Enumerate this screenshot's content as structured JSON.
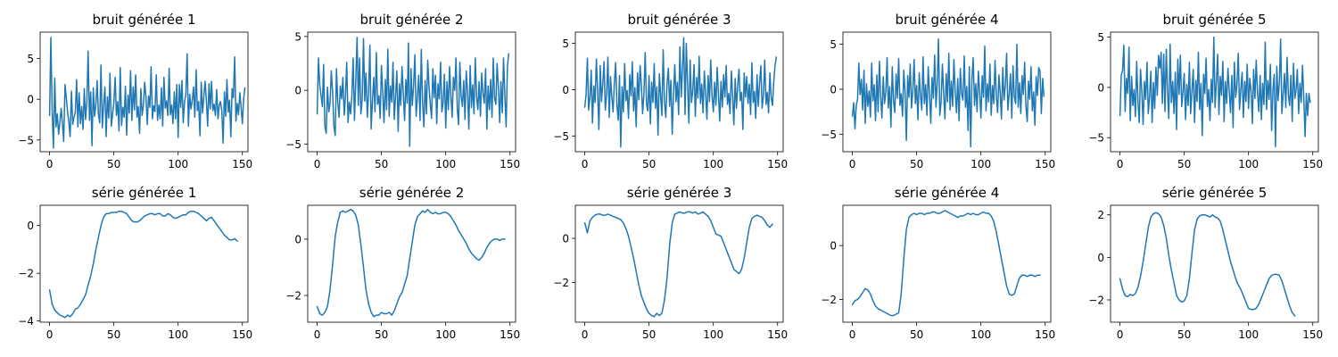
{
  "figure": {
    "background": "#ffffff",
    "line_color": "#1f77b4"
  },
  "chart_data": [
    {
      "type": "line",
      "title": "bruit générée 1",
      "xlim": [
        -7.35,
        154.35
      ],
      "ylim": [
        -6.45,
        8.25
      ],
      "xticks": [
        0,
        50,
        100,
        150
      ],
      "yticks": [
        -5,
        0,
        5
      ],
      "x_start": 0,
      "x_step": 1,
      "values": [
        -2.0,
        7.6,
        -1.5,
        -6.0,
        2.6,
        -3.4,
        -1.8,
        -4.3,
        -2.9,
        -1.1,
        -3.0,
        -5.2,
        1.8,
        0.2,
        -1.6,
        -2.8,
        -4.6,
        1.0,
        -3.1,
        -2.2,
        -1.6,
        2.4,
        -3.4,
        0.8,
        -3.0,
        -0.9,
        -3.7,
        1.3,
        -2.5,
        -0.3,
        5.9,
        -2.6,
        0.9,
        -5.7,
        1.4,
        -2.1,
        -0.6,
        2.3,
        -1.8,
        -2.9,
        4.2,
        -3.5,
        -0.8,
        1.5,
        -4.6,
        0.3,
        -2.3,
        3.2,
        -3.3,
        -1.8,
        -0.5,
        2.7,
        -2.0,
        -0.3,
        -3.9,
        3.9,
        -3.2,
        -1.0,
        -2.2,
        1.6,
        -4.4,
        0.5,
        -1.7,
        3.5,
        -2.6,
        1.5,
        -1.3,
        3.0,
        -2.2,
        -0.9,
        -4.2,
        1.3,
        -2.0,
        -0.7,
        2.1,
        0.2,
        -3.1,
        0.4,
        -1.0,
        4.0,
        -2.4,
        -0.8,
        -1.5,
        3.0,
        -2.6,
        -0.7,
        -2.4,
        1.4,
        -3.3,
        2.7,
        -1.1,
        -0.2,
        -2.0,
        3.8,
        -1.9,
        -0.7,
        -3.0,
        0.9,
        -2.4,
        1.8,
        -4.7,
        1.8,
        -1.0,
        2.3,
        -2.9,
        -0.3,
        0.5,
        5.6,
        -3.3,
        0.6,
        -1.2,
        -0.2,
        1.5,
        -2.2,
        3.6,
        -1.4,
        -0.3,
        -4.5,
        2.1,
        -1.7,
        0.3,
        2.2,
        -0.2,
        -3.3,
        1.9,
        -1.2,
        2.2,
        -1.4,
        -0.6,
        -2.0,
        1.2,
        -2.4,
        -0.7,
        -0.3,
        -1.5,
        -5.4,
        0.9,
        -2.1,
        2.4,
        -1.6,
        -0.1,
        -4.6,
        1.3,
        0.2,
        5.2,
        -2.7,
        -0.5,
        -1.9,
        0.8,
        -1.0,
        -3.0,
        0.1,
        1.4
      ]
    },
    {
      "type": "line",
      "title": "bruit générée 2",
      "xlim": [
        -7.35,
        154.35
      ],
      "ylim": [
        -5.7,
        5.4
      ],
      "xticks": [
        0,
        50,
        100,
        150
      ],
      "yticks": [
        -5,
        0,
        5
      ],
      "x_start": 0,
      "x_step": 1,
      "values": [
        -2.2,
        3.0,
        0.5,
        -0.5,
        -1.5,
        2.4,
        -3.3,
        -4.0,
        0.3,
        -2.0,
        -1.2,
        1.8,
        -0.2,
        -3.3,
        -4.2,
        2.0,
        -1.0,
        -2.5,
        0.4,
        -0.8,
        1.2,
        -2.3,
        -0.5,
        2.6,
        -3.0,
        -1.1,
        -2.2,
        -0.4,
        3.0,
        -2.8,
        0.7,
        4.9,
        -1.4,
        3.0,
        -2.2,
        -0.9,
        4.8,
        -1.0,
        1.6,
        -2.5,
        -0.3,
        4.2,
        -3.6,
        -0.9,
        1.2,
        -2.0,
        3.5,
        -1.3,
        -0.5,
        -2.6,
        2.3,
        -0.2,
        -3.0,
        1.0,
        -1.8,
        3.8,
        -2.4,
        0.4,
        -1.1,
        2.6,
        -2.7,
        -0.5,
        1.8,
        -3.8,
        0.6,
        -1.4,
        2.2,
        -0.3,
        -2.8,
        1.0,
        -1.2,
        4.4,
        -5.2,
        2.0,
        -1.4,
        0.5,
        3.3,
        -2.4,
        -0.6,
        1.4,
        -2.8,
        3.8,
        -1.0,
        -3.4,
        0.9,
        -2.2,
        2.8,
        0.3,
        -1.3,
        -2.6,
        2.0,
        -0.7,
        1.4,
        -3.1,
        0.6,
        -0.8,
        2.6,
        -2.0,
        -1.1,
        1.5,
        -3.5,
        0.8,
        -1.8,
        2.2,
        -0.4,
        -2.5,
        1.2,
        0.0,
        3.0,
        -1.8,
        -3.2,
        2.6,
        -0.6,
        -1.5,
        0.9,
        -2.7,
        1.8,
        -0.2,
        -3.6,
        2.3,
        -1.6,
        0.5,
        -2.2,
        3.0,
        -0.6,
        -1.8,
        0.8,
        -2.4,
        1.6,
        -0.3,
        -1.2,
        2.0,
        -3.6,
        0.4,
        -1.8,
        1.0,
        -2.5,
        3.0,
        -0.7,
        -1.3,
        2.5,
        0.2,
        -3.0,
        0.8,
        -2.1,
        3.0,
        -0.5,
        -3.4,
        2.2,
        3.4
      ]
    },
    {
      "type": "line",
      "title": "bruit générée 3",
      "xlim": [
        -7.35,
        154.35
      ],
      "ylim": [
        -6.7,
        6.2
      ],
      "xticks": [
        0,
        50,
        100,
        150
      ],
      "yticks": [
        -5,
        0,
        5
      ],
      "x_start": 0,
      "x_step": 1,
      "values": [
        -1.9,
        -0.6,
        3.4,
        -2.2,
        -0.8,
        2.1,
        -3.6,
        0.4,
        -1.4,
        3.3,
        -0.2,
        -4.3,
        2.6,
        -1.3,
        0.7,
        3.0,
        -2.2,
        -0.5,
        3.5,
        -3.0,
        1.4,
        -0.8,
        -2.4,
        0.6,
        2.9,
        -1.6,
        -3.3,
        1.5,
        -6.2,
        0.3,
        -2.4,
        2.8,
        -1.2,
        -0.1,
        -3.1,
        1.6,
        -0.7,
        3.0,
        -2.3,
        0.2,
        -4.0,
        1.8,
        -1.1,
        2.6,
        0.5,
        -2.6,
        -0.4,
        4.0,
        -1.6,
        -2.3,
        1.5,
        -3.7,
        0.8,
        -1.4,
        2.8,
        -2.0,
        0.3,
        -4.9,
        1.7,
        -0.6,
        -2.8,
        4.3,
        -1.3,
        -3.0,
        0.6,
        2.3,
        -1.8,
        1.0,
        -4.8,
        -0.6,
        2.7,
        -1.3,
        0.8,
        -2.7,
        4.6,
        -0.8,
        2.3,
        5.6,
        -2.7,
        5.0,
        0.4,
        -3.6,
        3.2,
        -1.4,
        -0.2,
        2.7,
        -2.9,
        1.3,
        -0.9,
        3.6,
        -1.5,
        0.6,
        -2.5,
        2.0,
        -0.3,
        -3.2,
        1.5,
        -1.3,
        3.2,
        -0.6,
        -2.4,
        0.8,
        -1.7,
        2.4,
        -0.4,
        -3.4,
        0.9,
        -1.9,
        1.6,
        -0.8,
        2.6,
        -1.6,
        -0.4,
        -2.6,
        2.0,
        -0.6,
        -3.8,
        1.2,
        -2.0,
        0.5,
        2.2,
        -1.2,
        -0.3,
        -4.3,
        1.8,
        -0.8,
        1.4,
        -1.5,
        0.6,
        -2.7,
        2.9,
        -1.4,
        -0.2,
        -3.1,
        1.6,
        -1.8,
        0.8,
        2.6,
        -2.0,
        -0.6,
        3.2,
        -1.6,
        -0.3,
        -2.5,
        1.8,
        -0.8,
        -1.7,
        0.8,
        2.6,
        3.5
      ]
    },
    {
      "type": "line",
      "title": "bruit générée 4",
      "xlim": [
        -7.35,
        154.35
      ],
      "ylim": [
        -6.95,
        6.35
      ],
      "xticks": [
        0,
        50,
        100,
        150
      ],
      "yticks": [
        -5,
        0,
        5
      ],
      "x_start": 0,
      "x_step": 1,
      "values": [
        -3.0,
        -1.5,
        -4.4,
        -1.8,
        -1.1,
        2.9,
        -0.6,
        1.1,
        -2.3,
        2.1,
        -3.8,
        0.6,
        -1.9,
        -0.2,
        -3.1,
        2.9,
        -1.3,
        0.5,
        -3.5,
        1.6,
        -2.5,
        3.1,
        -0.8,
        -3.2,
        1.4,
        -1.6,
        -0.3,
        3.5,
        -2.1,
        0.3,
        -4.2,
        2.5,
        -1.2,
        -2.6,
        1.7,
        -1.0,
        3.4,
        -1.8,
        -0.5,
        -3.0,
        2.1,
        -0.4,
        -5.7,
        1.5,
        -0.9,
        2.8,
        -2.1,
        -0.2,
        3.3,
        -1.6,
        0.4,
        -3.4,
        1.8,
        -0.8,
        -2.3,
        3.6,
        -1.6,
        0.5,
        -2.9,
        2.5,
        -0.4,
        -3.8,
        1.3,
        -1.0,
        3.8,
        -2.0,
        0.7,
        5.6,
        -2.9,
        -1.5,
        2.8,
        -0.5,
        -3.3,
        1.7,
        -1.4,
        4.0,
        -2.3,
        0.9,
        -1.9,
        3.3,
        -0.4,
        -2.6,
        1.2,
        -3.5,
        2.3,
        -0.6,
        -1.2,
        3.7,
        -2.0,
        0.3,
        -4.6,
        2.5,
        -6.4,
        1.0,
        3.5,
        -1.8,
        0.6,
        -2.5,
        2.0,
        -0.2,
        -3.2,
        1.5,
        -0.9,
        4.8,
        -2.4,
        0.6,
        -1.4,
        2.8,
        -2.9,
        0.4,
        -1.6,
        3.2,
        -0.8,
        -2.6,
        1.6,
        -0.4,
        -3.3,
        2.4,
        -1.2,
        0.5,
        4.0,
        -2.3,
        -0.5,
        1.7,
        -3.2,
        2.6,
        -0.8,
        -1.6,
        5.0,
        -2.0,
        0.7,
        -2.7,
        1.5,
        -0.6,
        3.0,
        -1.8,
        -3.6,
        0.9,
        -1.1,
        2.5,
        -2.4,
        -0.3,
        -4.0,
        1.4,
        -0.7,
        2.4,
        2.0,
        -2.7,
        1.2,
        -0.8
      ]
    },
    {
      "type": "line",
      "title": "bruit générée 5",
      "xlim": [
        -7.35,
        154.35
      ],
      "ylim": [
        -6.4,
        5.5
      ],
      "xticks": [
        0,
        50,
        100,
        150
      ],
      "yticks": [
        -5,
        0,
        5
      ],
      "x_start": 0,
      "x_step": 1,
      "values": [
        -2.8,
        1.2,
        1.7,
        4.2,
        -2.4,
        0.9,
        -0.6,
        4.0,
        -3.3,
        1.1,
        -1.8,
        -0.2,
        -2.9,
        2.6,
        -1.5,
        -3.5,
        1.8,
        -0.4,
        -3.7,
        0.6,
        -1.2,
        2.5,
        -2.6,
        -1.0,
        1.6,
        -3.5,
        0.5,
        -2.1,
        2.0,
        -0.8,
        3.2,
        1.9,
        3.5,
        -1.6,
        3.3,
        -2.4,
        3.8,
        -0.5,
        -3.1,
        4.3,
        -1.5,
        0.6,
        -2.6,
        1.5,
        -4.2,
        2.8,
        -0.7,
        3.2,
        -1.9,
        -0.4,
        1.4,
        -3.2,
        0.3,
        -1.8,
        2.5,
        -2.6,
        -0.3,
        1.8,
        -3.5,
        0.7,
        -1.4,
        3.5,
        -2.2,
        0.4,
        -4.8,
        1.3,
        -0.6,
        2.9,
        -1.9,
        -0.2,
        -3.3,
        0.8,
        -1.5,
        5.0,
        -2.0,
        0.6,
        3.3,
        -2.7,
        1.1,
        -0.8,
        2.6,
        -3.4,
        0.6,
        -1.6,
        1.9,
        -0.4,
        -2.5,
        1.2,
        -4.0,
        2.5,
        -1.0,
        0.3,
        3.4,
        -2.2,
        -0.3,
        1.5,
        -3.0,
        0.6,
        -1.4,
        2.3,
        -2.1,
        0.9,
        -0.4,
        -3.6,
        1.8,
        -1.1,
        2.7,
        -0.6,
        -2.4,
        1.2,
        -3.2,
        0.4,
        -1.7,
        4.5,
        -2.2,
        0.7,
        -1.2,
        2.3,
        -4.3,
        -0.2,
        1.3,
        -5.9,
        2.1,
        -1.3,
        0.5,
        4.8,
        -2.6,
        -0.6,
        1.4,
        -2.0,
        3.0,
        -0.8,
        -1.8,
        1.2,
        -3.4,
        2.4,
        -1.1,
        -0.3,
        1.8,
        -2.6,
        0.4,
        -1.5,
        2.2,
        -0.9,
        -4.9,
        -0.6,
        -2.8,
        -0.6,
        -1.5
      ]
    },
    {
      "type": "line",
      "title": "série générée 1",
      "xlim": [
        -7.35,
        154.35
      ],
      "ylim": [
        -4.05,
        0.85
      ],
      "xticks": [
        0,
        50,
        100,
        150
      ],
      "yticks": [
        -4,
        -2,
        0
      ],
      "x_start": 0,
      "x_step": 2,
      "values": [
        -2.7,
        -3.3,
        -3.55,
        -3.65,
        -3.75,
        -3.8,
        -3.85,
        -3.75,
        -3.82,
        -3.7,
        -3.5,
        -3.45,
        -3.3,
        -3.1,
        -2.9,
        -2.5,
        -2.1,
        -1.6,
        -1.0,
        -0.5,
        0.0,
        0.35,
        0.5,
        0.5,
        0.55,
        0.55,
        0.55,
        0.6,
        0.6,
        0.55,
        0.5,
        0.35,
        0.2,
        0.15,
        0.15,
        0.2,
        0.3,
        0.4,
        0.45,
        0.5,
        0.5,
        0.45,
        0.5,
        0.5,
        0.4,
        0.4,
        0.5,
        0.45,
        0.35,
        0.3,
        0.35,
        0.4,
        0.45,
        0.45,
        0.55,
        0.6,
        0.6,
        0.55,
        0.5,
        0.4,
        0.3,
        0.2,
        0.3,
        0.35,
        0.2,
        0.05,
        -0.1,
        -0.25,
        -0.4,
        -0.5,
        -0.6,
        -0.6,
        -0.55,
        -0.65
      ]
    },
    {
      "type": "line",
      "title": "série générée 2",
      "xlim": [
        -7.35,
        154.35
      ],
      "ylim": [
        -2.95,
        1.2
      ],
      "xticks": [
        0,
        50,
        100,
        150
      ],
      "yticks": [
        -2,
        0
      ],
      "x_start": 0,
      "x_step": 2,
      "values": [
        -2.4,
        -2.65,
        -2.7,
        -2.6,
        -2.4,
        -1.8,
        -0.9,
        0.1,
        0.6,
        0.95,
        1.0,
        0.95,
        1.0,
        1.05,
        1.0,
        0.85,
        0.5,
        -0.2,
        -1.0,
        -1.8,
        -2.3,
        -2.6,
        -2.75,
        -2.7,
        -2.7,
        -2.6,
        -2.65,
        -2.65,
        -2.6,
        -2.7,
        -2.55,
        -2.3,
        -2.05,
        -1.9,
        -1.6,
        -1.3,
        -0.7,
        -0.1,
        0.5,
        0.8,
        0.9,
        1.0,
        0.95,
        1.05,
        0.95,
        0.9,
        0.95,
        0.9,
        0.9,
        0.95,
        0.95,
        0.9,
        0.8,
        0.65,
        0.5,
        0.3,
        0.15,
        0.0,
        -0.15,
        -0.35,
        -0.5,
        -0.6,
        -0.7,
        -0.75,
        -0.65,
        -0.5,
        -0.3,
        -0.15,
        -0.05,
        0.0,
        0.0,
        -0.05,
        0.0,
        0.0
      ]
    },
    {
      "type": "line",
      "title": "série générée 3",
      "xlim": [
        -7.35,
        154.35
      ],
      "ylim": [
        -3.8,
        1.5
      ],
      "xticks": [
        0,
        50,
        100,
        150
      ],
      "yticks": [
        -2,
        0
      ],
      "x_start": 0,
      "x_step": 2,
      "values": [
        0.7,
        0.25,
        0.8,
        0.95,
        1.05,
        1.1,
        1.1,
        1.05,
        1.05,
        1.1,
        1.05,
        1.0,
        0.95,
        0.9,
        0.85,
        0.7,
        0.45,
        0.1,
        -0.4,
        -0.9,
        -1.5,
        -2.1,
        -2.6,
        -2.9,
        -3.2,
        -3.4,
        -3.5,
        -3.55,
        -3.4,
        -3.5,
        -3.4,
        -2.8,
        -1.8,
        -0.3,
        0.7,
        1.1,
        1.15,
        1.2,
        1.15,
        1.15,
        1.2,
        1.2,
        1.15,
        1.2,
        1.1,
        1.15,
        1.2,
        1.1,
        1.0,
        0.8,
        0.5,
        0.2,
        0.15,
        0.1,
        -0.2,
        -0.5,
        -0.8,
        -1.1,
        -1.4,
        -1.5,
        -1.6,
        -1.4,
        -0.9,
        -0.2,
        0.5,
        0.9,
        1.0,
        1.05,
        1.0,
        0.95,
        0.8,
        0.6,
        0.5,
        0.65
      ]
    },
    {
      "type": "line",
      "title": "série générée 4",
      "xlim": [
        -7.35,
        154.35
      ],
      "ylim": [
        -2.85,
        1.5
      ],
      "xticks": [
        0,
        50,
        100,
        150
      ],
      "yticks": [
        -2,
        0
      ],
      "x_start": 0,
      "x_step": 2,
      "values": [
        -2.2,
        -2.05,
        -2.0,
        -1.9,
        -1.75,
        -1.6,
        -1.65,
        -1.8,
        -2.05,
        -2.25,
        -2.35,
        -2.4,
        -2.45,
        -2.5,
        -2.55,
        -2.6,
        -2.6,
        -2.55,
        -2.5,
        -1.8,
        -0.5,
        0.6,
        1.05,
        1.15,
        1.2,
        1.15,
        1.2,
        1.2,
        1.15,
        1.2,
        1.2,
        1.25,
        1.25,
        1.2,
        1.2,
        1.25,
        1.3,
        1.25,
        1.2,
        1.15,
        1.1,
        1.05,
        1.1,
        1.1,
        1.15,
        1.2,
        1.15,
        1.2,
        1.15,
        1.15,
        1.2,
        1.25,
        1.2,
        1.2,
        1.1,
        0.9,
        0.5,
        0.0,
        -0.5,
        -1.0,
        -1.5,
        -1.8,
        -1.85,
        -1.8,
        -1.5,
        -1.2,
        -1.1,
        -1.1,
        -1.15,
        -1.1,
        -1.1,
        -1.15,
        -1.1,
        -1.1
      ]
    },
    {
      "type": "line",
      "title": "série générée 5",
      "xlim": [
        -7.35,
        154.35
      ],
      "ylim": [
        -3.05,
        2.45
      ],
      "xticks": [
        0,
        50,
        100,
        150
      ],
      "yticks": [
        -2,
        0,
        2
      ],
      "x_start": 0,
      "x_step": 2,
      "values": [
        -1.0,
        -1.5,
        -1.8,
        -1.85,
        -1.75,
        -1.8,
        -1.7,
        -1.4,
        -0.9,
        -0.2,
        0.6,
        1.4,
        1.9,
        2.05,
        2.1,
        2.05,
        1.9,
        1.5,
        0.9,
        0.1,
        -0.6,
        -1.2,
        -1.8,
        -2.0,
        -2.1,
        -2.05,
        -1.8,
        -1.0,
        0.2,
        1.3,
        1.8,
        1.95,
        2.0,
        2.0,
        1.95,
        1.9,
        2.0,
        1.9,
        1.85,
        1.7,
        1.3,
        0.8,
        0.3,
        -0.2,
        -0.6,
        -1.0,
        -1.3,
        -1.5,
        -1.8,
        -2.1,
        -2.4,
        -2.45,
        -2.45,
        -2.4,
        -2.2,
        -1.9,
        -1.6,
        -1.3,
        -1.0,
        -0.85,
        -0.8,
        -0.8,
        -0.85,
        -1.1,
        -1.5,
        -1.9,
        -2.3,
        -2.6,
        -2.75
      ]
    }
  ]
}
